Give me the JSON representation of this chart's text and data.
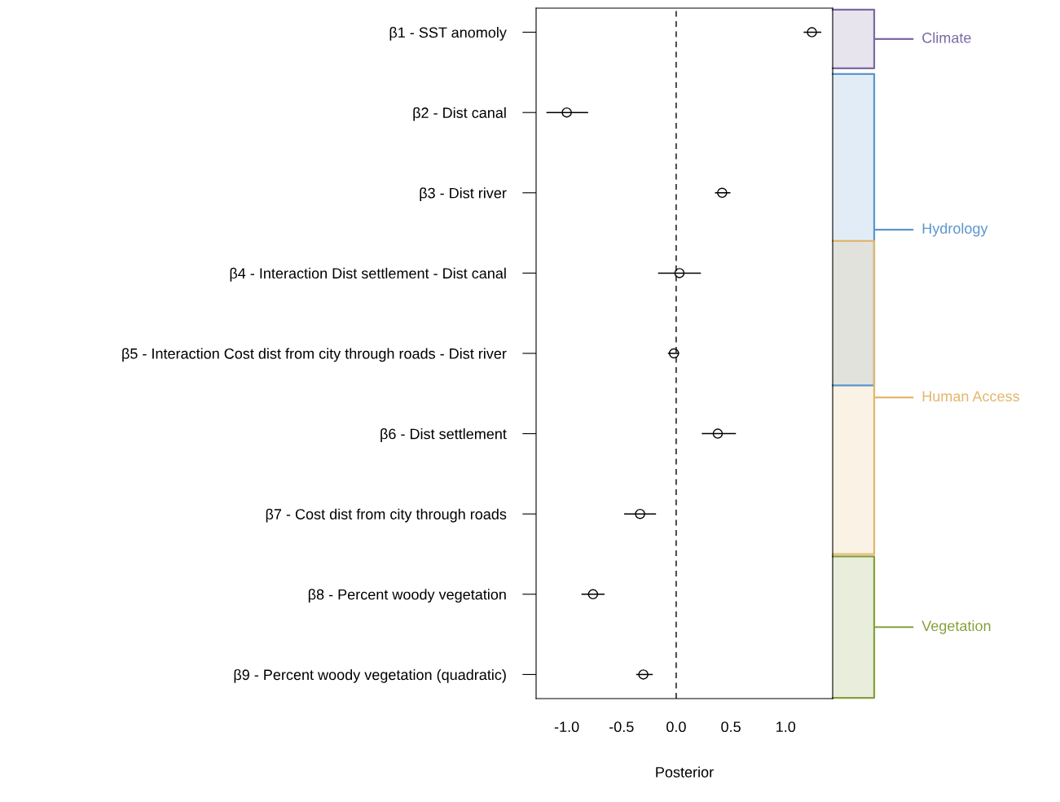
{
  "chart_data": {
    "type": "scatter",
    "orientation": "horizontal",
    "categories": [
      "β1 - SST anomoly",
      "β2 - Dist canal",
      "β3 - Dist river",
      "β4 - Interaction Dist settlement - Dist canal",
      "β5 - Interaction Cost dist from city through roads - Dist river",
      "β6 - Dist settlement",
      "β7 - Cost dist from city through roads",
      "β8 - Percent woody vegetation",
      "β9 - Percent woody vegetation (quadratic)"
    ],
    "values": [
      1.24,
      -1.0,
      0.42,
      0.03,
      -0.02,
      0.38,
      -0.33,
      -0.76,
      -0.3
    ],
    "errors": [
      [
        1.17,
        1.32
      ],
      [
        -1.18,
        -0.81
      ],
      [
        0.36,
        0.49
      ],
      [
        -0.16,
        0.22
      ],
      [
        -0.07,
        0.02
      ],
      [
        0.24,
        0.54
      ],
      [
        -0.47,
        -0.19
      ],
      [
        -0.86,
        -0.66
      ],
      [
        -0.36,
        -0.22
      ]
    ],
    "color": "#000000",
    "marker": "circle",
    "xlabel": "Posterior",
    "xlim": [
      -1.28,
      1.43
    ],
    "xticks": [
      {
        "value": -1,
        "label": "-1.0"
      },
      {
        "value": -0.5,
        "label": "-0.5"
      },
      {
        "value": 0,
        "label": "0.0"
      },
      {
        "value": 0.5,
        "label": "0.5"
      },
      {
        "value": 1,
        "label": "1.0"
      }
    ],
    "ref_lines": [
      {
        "axis": "x",
        "value": 0,
        "line_style": "dashed",
        "color": "#000000"
      }
    ],
    "annotations": [
      "Climate",
      "Hydrology",
      "Human Access",
      "Vegetation"
    ],
    "grid": false,
    "legend": false
  }
}
